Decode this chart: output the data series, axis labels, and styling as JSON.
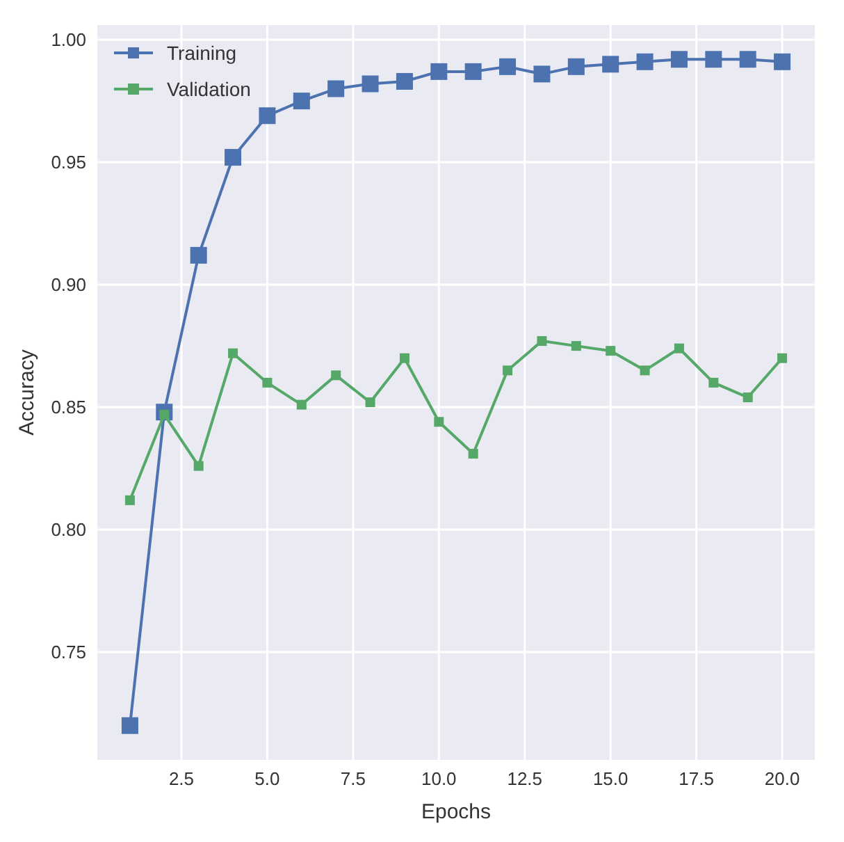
{
  "chart_data": {
    "type": "line",
    "xlabel": "Epochs",
    "ylabel": "Accuracy",
    "x": [
      1,
      2,
      3,
      4,
      5,
      6,
      7,
      8,
      9,
      10,
      11,
      12,
      13,
      14,
      15,
      16,
      17,
      18,
      19,
      20
    ],
    "series": [
      {
        "name": "Training",
        "color": "#4c72b0",
        "values": [
          0.72,
          0.848,
          0.912,
          0.952,
          0.969,
          0.975,
          0.98,
          0.982,
          0.983,
          0.987,
          0.987,
          0.989,
          0.986,
          0.989,
          0.99,
          0.991,
          0.992,
          0.992,
          0.992,
          0.991
        ]
      },
      {
        "name": "Validation",
        "color": "#55a868",
        "values": [
          0.812,
          0.847,
          0.826,
          0.872,
          0.86,
          0.851,
          0.863,
          0.852,
          0.87,
          0.844,
          0.831,
          0.865,
          0.877,
          0.875,
          0.873,
          0.865,
          0.874,
          0.86,
          0.854,
          0.87
        ]
      }
    ],
    "xlim": [
      0.05,
      20.95
    ],
    "ylim": [
      0.706,
      1.006
    ],
    "xticks": [
      {
        "value": 2.5,
        "label": "2.5"
      },
      {
        "value": 5,
        "label": "5.0"
      },
      {
        "value": 7.5,
        "label": "7.5"
      },
      {
        "value": 10,
        "label": "10.0"
      },
      {
        "value": 12.5,
        "label": "12.5"
      },
      {
        "value": 15,
        "label": "15.0"
      },
      {
        "value": 17.5,
        "label": "17.5"
      },
      {
        "value": 20,
        "label": "20.0"
      }
    ],
    "yticks": [
      {
        "value": 0.75,
        "label": "0.75"
      },
      {
        "value": 0.8,
        "label": "0.80"
      },
      {
        "value": 0.85,
        "label": "0.85"
      },
      {
        "value": 0.9,
        "label": "0.90"
      },
      {
        "value": 0.95,
        "label": "0.95"
      },
      {
        "value": 1.0,
        "label": "1.00"
      }
    ],
    "grid": true,
    "legend": "top left",
    "marker": "square",
    "line_style": "solid"
  }
}
